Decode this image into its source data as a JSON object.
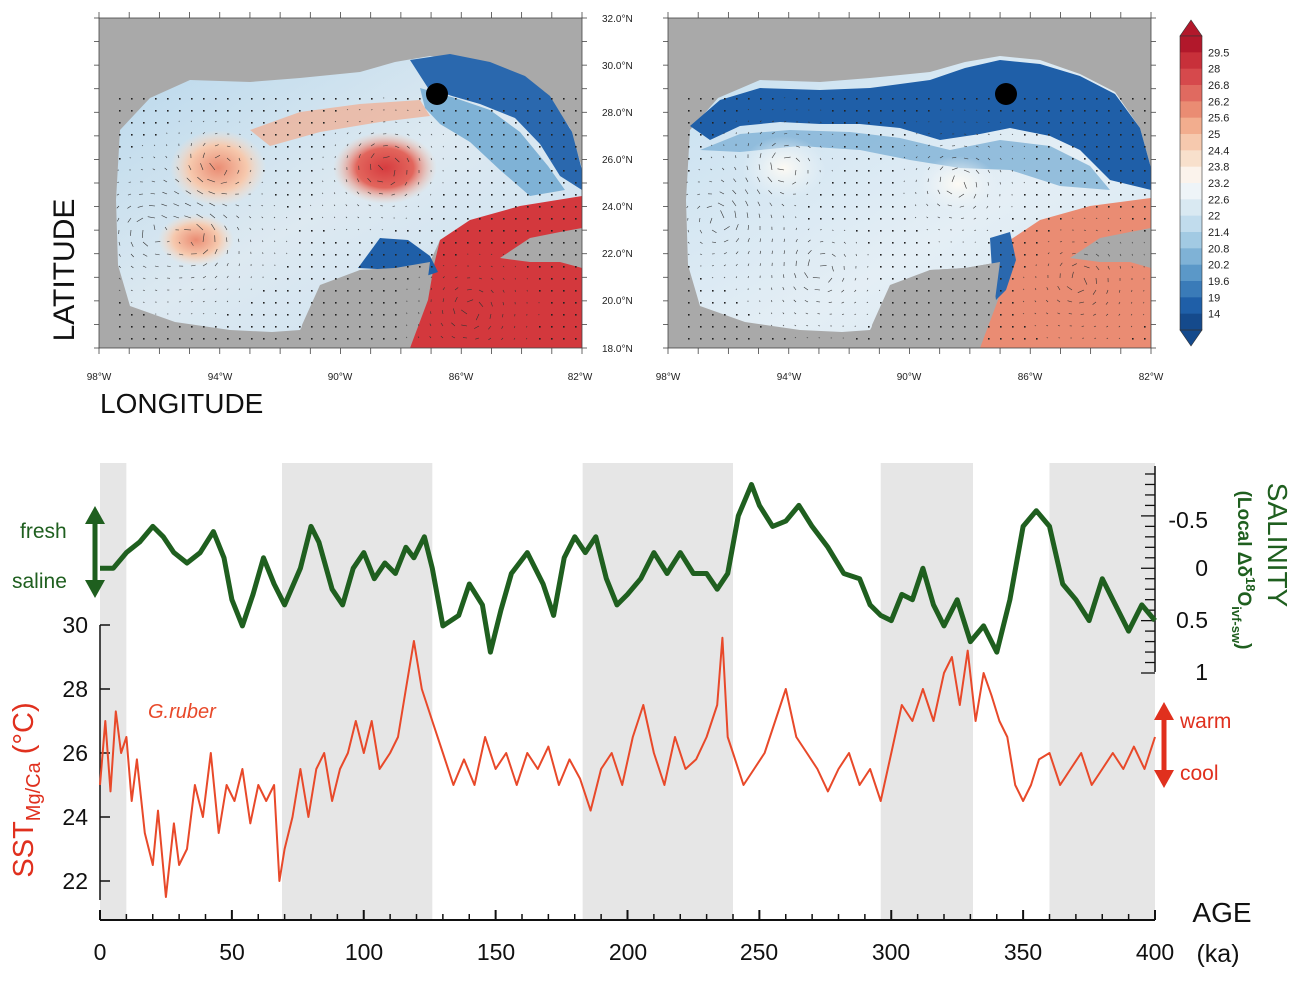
{
  "maps": {
    "latitude_label": "LATITUDE",
    "longitude_label": "LONGITUDE",
    "lat_ticks": [
      "32.0°N",
      "30.0°N",
      "28.0°N",
      "26.0°N",
      "24.0°N",
      "22.0°N",
      "20.0°N",
      "18.0°N"
    ],
    "lon_ticks": [
      "98°W",
      "94°W",
      "90°W",
      "86°W",
      "82°W"
    ],
    "colorbar": {
      "labels": [
        "29.5",
        "28",
        "26.8",
        "26.2",
        "25.6",
        "25",
        "24.4",
        "23.8",
        "23.2",
        "22.6",
        "22",
        "21.4",
        "20.8",
        "20.2",
        "19.6",
        "19",
        "14"
      ],
      "colors": [
        "#b2182b",
        "#c8303a",
        "#d6494c",
        "#e06a60",
        "#ea8c73",
        "#f2ad8e",
        "#f6c9ae",
        "#f8e0cc",
        "#fbf3ec",
        "#eef4f8",
        "#d9e9f2",
        "#c1dced",
        "#a2cae3",
        "#7fb2d6",
        "#5b98c8",
        "#3a7bb8",
        "#1f5fa8",
        "#154a8c"
      ]
    },
    "land_color": "#a9a9a9",
    "site_marker_color": "#000000"
  },
  "timeseries": {
    "salinity": {
      "axis_title": "SALINITY",
      "axis_subtitle": "(Local Δδ18Oivf-sw)",
      "ticks": [
        "-0.5",
        "0",
        "0.5",
        "1"
      ],
      "fresh_label": "fresh",
      "saline_label": "saline",
      "color": "#1f5f1f"
    },
    "sst": {
      "axis_label": "SSTMg/Ca (°C)",
      "ticks": [
        "30",
        "28",
        "26",
        "24",
        "22"
      ],
      "species_label": "G.ruber",
      "warm_label": "warm",
      "cool_label": "cool",
      "color": "#e8492a"
    },
    "age": {
      "label": "AGE",
      "unit": "(ka)",
      "ticks": [
        "0",
        "50",
        "100",
        "150",
        "200",
        "250",
        "300",
        "350",
        "400"
      ]
    }
  },
  "chart_data": {
    "type": "line",
    "x_label": "AGE (ka)",
    "xlim": [
      0,
      400
    ],
    "shaded_intervals": [
      [
        0,
        10
      ],
      [
        69,
        126
      ],
      [
        183,
        240
      ],
      [
        296,
        331
      ],
      [
        360,
        400
      ]
    ],
    "series": [
      {
        "name": "SALINITY",
        "axis": "right",
        "ylim": [
          -0.9,
          1.0
        ],
        "y_inverted": true,
        "x": [
          0,
          5,
          10,
          15,
          20,
          24,
          28,
          33,
          38,
          43,
          47,
          50,
          54,
          58,
          62,
          66,
          70,
          76,
          80,
          83,
          88,
          92,
          96,
          100,
          104,
          108,
          112,
          116,
          119,
          123,
          126,
          130,
          136,
          140,
          145,
          148,
          152,
          156,
          162,
          168,
          172,
          176,
          180,
          184,
          188,
          192,
          196,
          200,
          205,
          210,
          215,
          220,
          225,
          230,
          234,
          238,
          242,
          247,
          250,
          255,
          260,
          265,
          270,
          276,
          282,
          288,
          292,
          296,
          300,
          304,
          308,
          312,
          316,
          320,
          325,
          330,
          335,
          340,
          345,
          350,
          355,
          360,
          365,
          370,
          375,
          380,
          385,
          390,
          395,
          400
        ],
        "y": [
          0.0,
          0.0,
          -0.15,
          -0.25,
          -0.4,
          -0.3,
          -0.15,
          -0.05,
          -0.15,
          -0.35,
          -0.1,
          0.3,
          0.55,
          0.25,
          -0.1,
          0.15,
          0.35,
          0.0,
          -0.4,
          -0.25,
          0.2,
          0.35,
          0.0,
          -0.15,
          0.1,
          -0.05,
          0.05,
          -0.2,
          -0.1,
          -0.3,
          0.0,
          0.55,
          0.45,
          0.15,
          0.35,
          0.8,
          0.4,
          0.05,
          -0.15,
          0.15,
          0.45,
          -0.1,
          -0.3,
          -0.15,
          -0.3,
          0.1,
          0.35,
          0.25,
          0.1,
          -0.15,
          0.05,
          -0.15,
          0.05,
          0.05,
          0.2,
          0.05,
          -0.5,
          -0.8,
          -0.6,
          -0.4,
          -0.45,
          -0.6,
          -0.4,
          -0.2,
          0.05,
          0.1,
          0.35,
          0.45,
          0.5,
          0.25,
          0.3,
          0.0,
          0.35,
          0.55,
          0.3,
          0.7,
          0.55,
          0.8,
          0.3,
          -0.4,
          -0.55,
          -0.4,
          0.15,
          0.3,
          0.5,
          0.1,
          0.35,
          0.6,
          0.35,
          0.5
        ]
      },
      {
        "name": "G.ruber",
        "axis": "left",
        "ylim": [
          21,
          30
        ],
        "x": [
          0,
          2,
          4,
          6,
          8,
          10,
          12,
          14,
          17,
          20,
          22,
          25,
          28,
          30,
          33,
          36,
          39,
          42,
          45,
          48,
          51,
          54,
          57,
          60,
          63,
          66,
          68,
          70,
          73,
          76,
          79,
          82,
          85,
          88,
          91,
          94,
          97,
          100,
          103,
          106,
          110,
          113,
          116,
          119,
          122,
          126,
          130,
          134,
          138,
          142,
          146,
          150,
          154,
          158,
          162,
          166,
          170,
          174,
          178,
          182,
          186,
          190,
          194,
          198,
          202,
          206,
          210,
          214,
          218,
          222,
          226,
          230,
          234,
          236,
          238,
          240,
          244,
          248,
          252,
          256,
          260,
          264,
          268,
          272,
          276,
          280,
          284,
          288,
          292,
          296,
          300,
          304,
          308,
          312,
          316,
          320,
          323,
          326,
          329,
          332,
          335,
          338,
          341,
          344,
          347,
          350,
          353,
          356,
          360,
          364,
          368,
          372,
          376,
          380,
          384,
          388,
          392,
          396,
          400
        ],
        "y": [
          25.0,
          27.0,
          24.8,
          27.3,
          26.0,
          26.5,
          24.5,
          25.8,
          23.5,
          22.5,
          24.2,
          21.5,
          23.8,
          22.5,
          23.0,
          25.0,
          24.0,
          26.0,
          23.5,
          25.0,
          24.5,
          25.5,
          23.8,
          25.0,
          24.5,
          25.0,
          22.0,
          23.0,
          24.0,
          25.5,
          24.0,
          25.5,
          26.0,
          24.5,
          25.5,
          26.0,
          27.0,
          26.0,
          27.0,
          25.5,
          26.0,
          26.5,
          28.0,
          29.5,
          28.0,
          27.0,
          26.0,
          25.0,
          25.8,
          25.0,
          26.5,
          25.5,
          26.0,
          25.0,
          26.0,
          25.5,
          26.2,
          25.0,
          25.8,
          25.2,
          24.2,
          25.5,
          26.0,
          25.0,
          26.5,
          27.5,
          26.0,
          25.0,
          26.5,
          25.5,
          25.8,
          26.5,
          27.5,
          29.6,
          26.5,
          26.0,
          25.0,
          25.5,
          26.0,
          27.0,
          28.0,
          26.5,
          26.0,
          25.5,
          24.8,
          25.5,
          26.0,
          25.0,
          25.5,
          24.5,
          26.0,
          27.5,
          27.0,
          28.0,
          27.0,
          28.5,
          29.0,
          27.5,
          29.2,
          27.0,
          28.5,
          27.8,
          27.0,
          26.5,
          25.0,
          24.5,
          25.0,
          25.8,
          26.0,
          25.0,
          25.5,
          26.0,
          25.0,
          25.5,
          26.0,
          25.5,
          26.2,
          25.5,
          26.5
        ]
      }
    ],
    "annotations": [
      "G.ruber",
      "fresh",
      "saline",
      "warm",
      "cool"
    ]
  }
}
